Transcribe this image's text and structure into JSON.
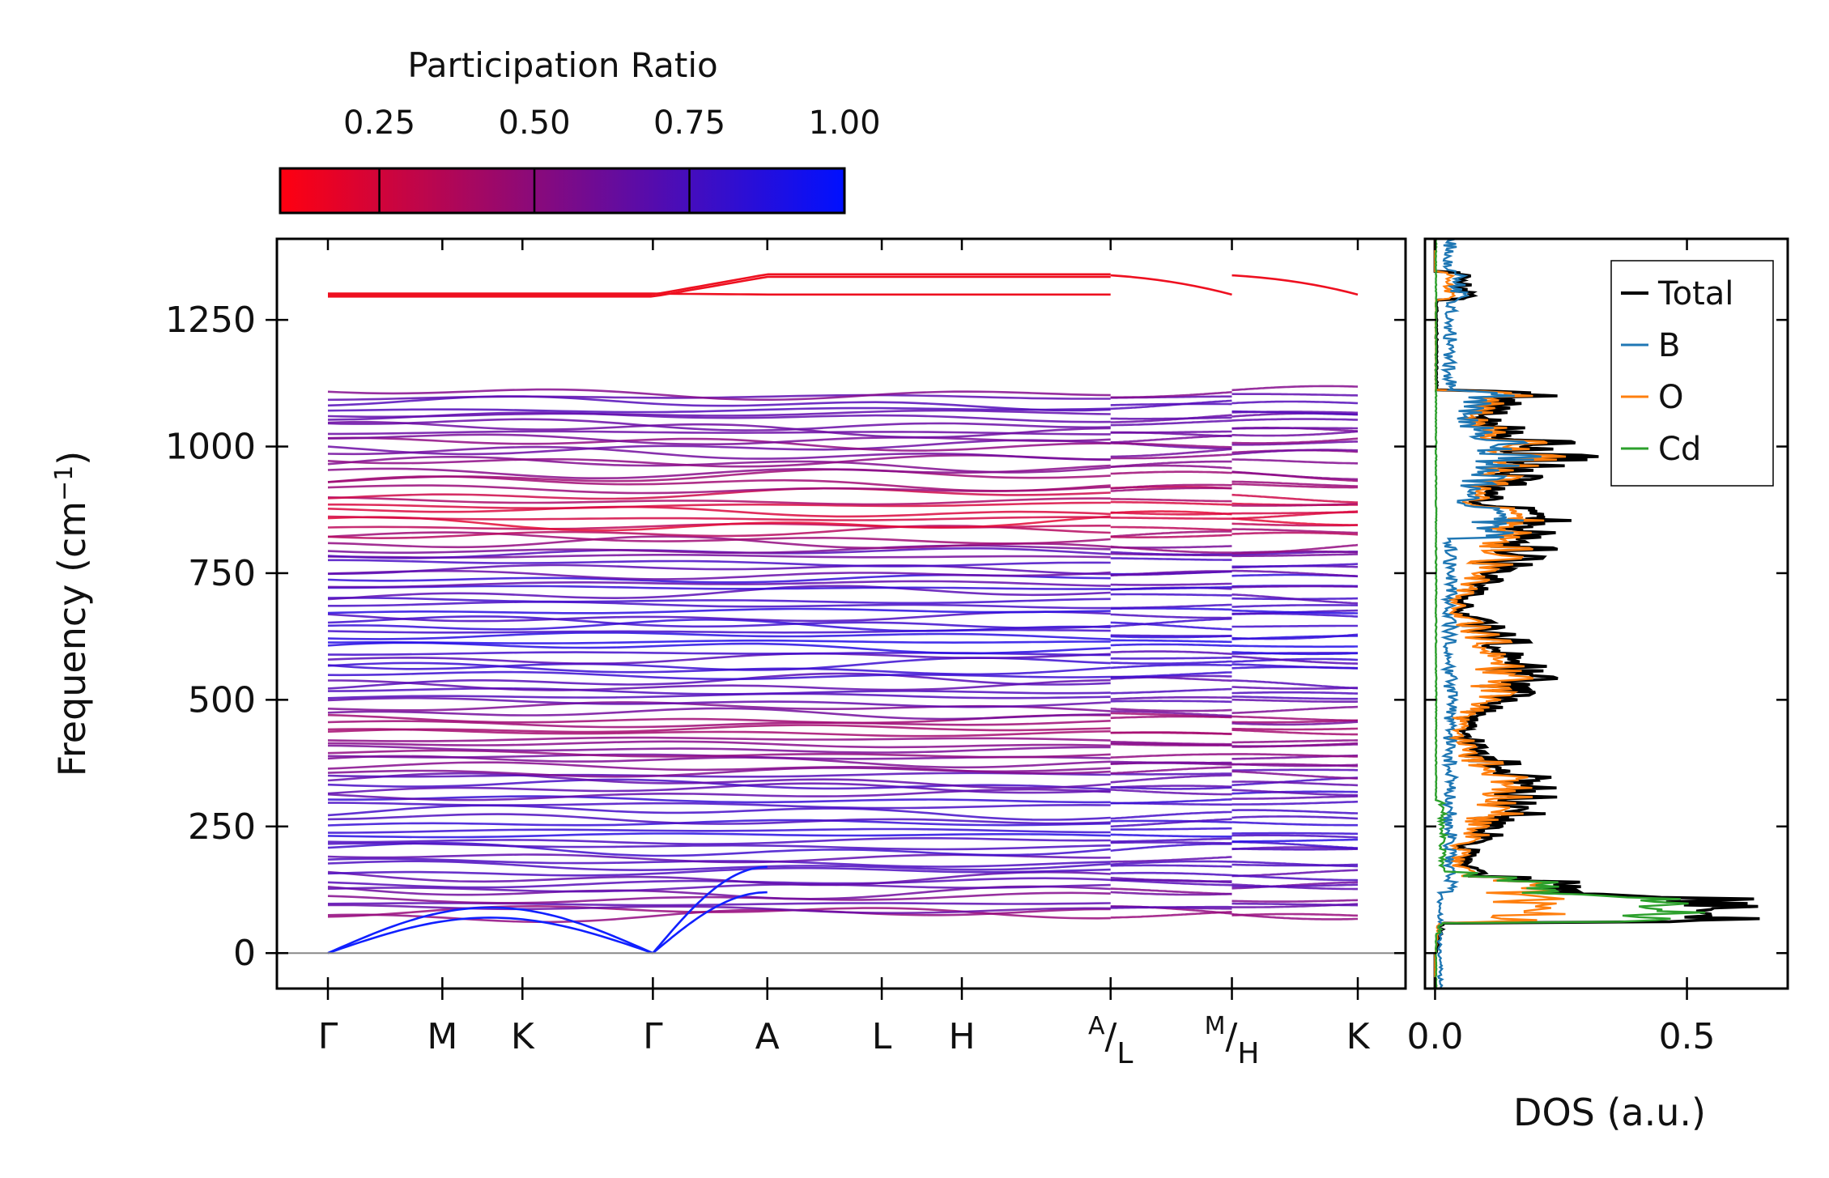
{
  "chart_data": [
    {
      "type": "line",
      "name": "phonon-band-structure",
      "ylabel": "Frequency (cm",
      "ylabel_sup": "−1",
      "ylabel_close": ")",
      "ylim": [
        -70,
        1410
      ],
      "yticks": [
        0,
        250,
        500,
        750,
        1000,
        1250
      ],
      "ytick_labels": [
        "0",
        "250",
        "500",
        "750",
        "1000",
        "1250"
      ],
      "kpath": [
        "Γ",
        "M",
        "K",
        "Γ",
        "A",
        "L",
        "H",
        "A|L",
        "M|H",
        "K"
      ],
      "kpath_labels": [
        {
          "main": "Γ"
        },
        {
          "main": "M"
        },
        {
          "main": "K"
        },
        {
          "main": "Γ"
        },
        {
          "main": "A"
        },
        {
          "main": "L"
        },
        {
          "main": "H"
        },
        {
          "sup": "A",
          "sub": "L"
        },
        {
          "sup": "M",
          "sub": "H"
        },
        {
          "main": "K"
        }
      ],
      "kpath_distances": [
        0,
        1.0,
        1.7,
        2.84,
        3.84,
        4.84,
        5.54,
        6.84,
        7.9,
        9.0
      ],
      "discontinuities_after_segment": [
        6,
        7
      ],
      "color_by": "participation_ratio",
      "zero_line": 0
    },
    {
      "type": "line",
      "name": "phonon-dos",
      "xlabel": "DOS (a.u.)",
      "xlim": [
        -0.02,
        0.7
      ],
      "xticks": [
        0.0,
        0.5
      ],
      "xtick_labels": [
        "0.0",
        "0.5"
      ],
      "ylim": [
        -70,
        1410
      ],
      "legend_position": "top-right",
      "series": [
        {
          "name": "Total",
          "color": "#000000"
        },
        {
          "name": "B",
          "color": "#1f77b4"
        },
        {
          "name": "O",
          "color": "#ff7f0e"
        },
        {
          "name": "Cd",
          "color": "#2ca02c"
        }
      ]
    }
  ],
  "colorbar": {
    "title": "Participation Ratio",
    "range": [
      0.09,
      1.0
    ],
    "ticks": [
      0.25,
      0.5,
      0.75,
      1.0
    ],
    "tick_labels": [
      "0.25",
      "0.50",
      "0.75",
      "1.00"
    ],
    "color_low": "#ff0000",
    "color_high": "#0000ff"
  }
}
